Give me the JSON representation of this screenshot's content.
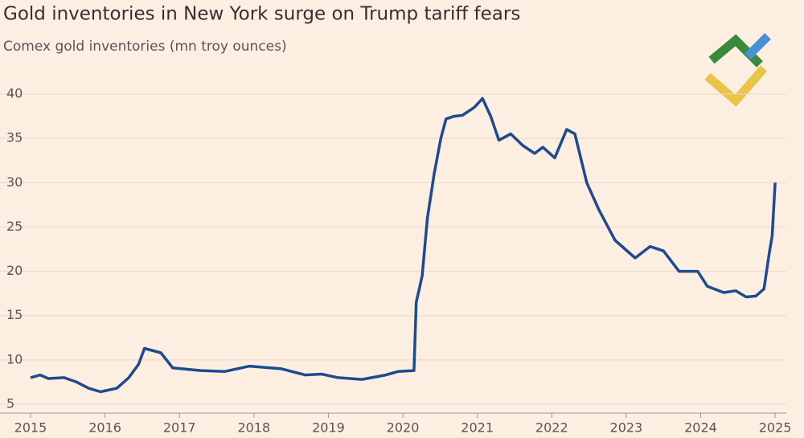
{
  "chart_data": {
    "type": "line",
    "title": "Gold inventories in New York surge on Trump tariff fears",
    "subtitle": "Comex gold inventories (mn troy ounces)",
    "xlim": [
      2015,
      2025.15
    ],
    "xticks": [
      2015,
      2016,
      2017,
      2018,
      2019,
      2020,
      2021,
      2022,
      2023,
      2024,
      2025
    ],
    "ylim": [
      4,
      41
    ],
    "yticks": [
      5,
      10,
      15,
      20,
      25,
      30,
      35,
      40
    ],
    "grid": true,
    "series": [
      {
        "color": "#1d4b8f",
        "x": [
          2015.0,
          2015.13,
          2015.24,
          2015.45,
          2015.62,
          2015.78,
          2015.94,
          2016.16,
          2016.32,
          2016.45,
          2016.53,
          2016.75,
          2016.91,
          2017.29,
          2017.61,
          2017.94,
          2018.37,
          2018.69,
          2018.91,
          2019.13,
          2019.45,
          2019.77,
          2019.94,
          2020.15,
          2020.18,
          2020.26,
          2020.33,
          2020.42,
          2020.51,
          2020.58,
          2020.69,
          2020.8,
          2020.96,
          2021.07,
          2021.18,
          2021.29,
          2021.45,
          2021.61,
          2021.77,
          2021.88,
          2022.04,
          2022.2,
          2022.31,
          2022.47,
          2022.63,
          2022.85,
          2023.12,
          2023.32,
          2023.5,
          2023.71,
          2023.96,
          2024.09,
          2024.31,
          2024.47,
          2024.61,
          2024.74,
          2024.85,
          2024.92,
          2024.96,
          2025.0
        ],
        "values": [
          8.0,
          8.3,
          7.9,
          8.0,
          7.5,
          6.8,
          6.4,
          6.8,
          8.0,
          9.5,
          11.3,
          10.8,
          9.1,
          8.8,
          8.7,
          9.3,
          9.0,
          8.3,
          8.4,
          8.0,
          7.8,
          8.3,
          8.7,
          8.8,
          16.5,
          19.5,
          26,
          31,
          35,
          37.2,
          37.5,
          37.6,
          38.5,
          39.5,
          37.5,
          34.8,
          35.5,
          34.2,
          33.3,
          34.0,
          32.8,
          36.0,
          35.5,
          30,
          27,
          23.5,
          21.5,
          22.8,
          22.3,
          20.0,
          20.0,
          18.3,
          17.6,
          17.8,
          17.1,
          17.2,
          18.0,
          22,
          24,
          30
        ]
      }
    ]
  }
}
